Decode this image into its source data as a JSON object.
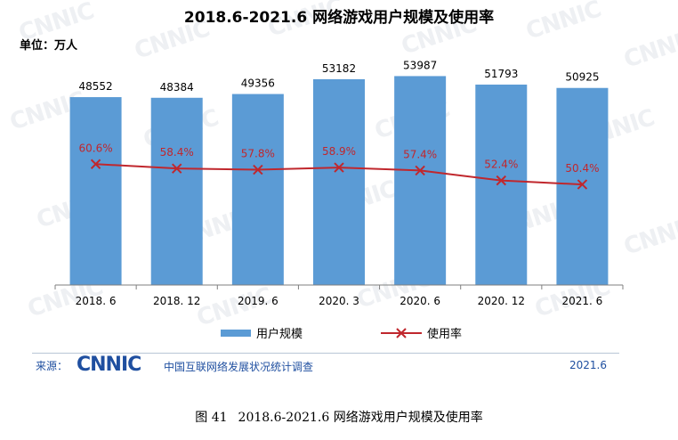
{
  "watermark_text": "CNNIC",
  "unit_label": "单位：万人",
  "legend": {
    "bar": "用户规模",
    "line": "使用率"
  },
  "footer": {
    "source_label": "来源：",
    "logo_text": "CNNIC",
    "org_name": "中国互联网络发展状况统计调查",
    "date": "2021.6"
  },
  "caption": {
    "figure_label": "图 41",
    "text": "2018.6-2021.6 网络游戏用户规模及使用率"
  },
  "colors": {
    "bar": "#5b9bd5",
    "line": "#c0272d",
    "axis": "#7f7f7f"
  },
  "chart_data": {
    "type": "bar",
    "title": "2018.6-2021.6 网络游戏用户规模及使用率",
    "xlabel": "",
    "ylabel": "",
    "categories": [
      "2018. 6",
      "2018. 12",
      "2019. 6",
      "2020. 3",
      "2020. 6",
      "2020. 12",
      "2021. 6"
    ],
    "series": [
      {
        "name": "用户规模",
        "type": "bar",
        "values": [
          48552,
          48384,
          49356,
          53182,
          53987,
          51793,
          50925
        ]
      },
      {
        "name": "使用率",
        "type": "line",
        "values": [
          60.6,
          58.4,
          57.8,
          58.9,
          57.4,
          52.4,
          50.4
        ],
        "labels": [
          "60.6%",
          "58.4%",
          "57.8%",
          "58.9%",
          "57.4%",
          "52.4%",
          "50.4%"
        ]
      }
    ],
    "bar_labels": [
      "48552",
      "48384",
      "49356",
      "53182",
      "53987",
      "51793",
      "50925"
    ],
    "ylim": [
      0,
      58000
    ],
    "y2lim": [
      0,
      100
    ],
    "grid": false,
    "legend_position": "bottom"
  }
}
